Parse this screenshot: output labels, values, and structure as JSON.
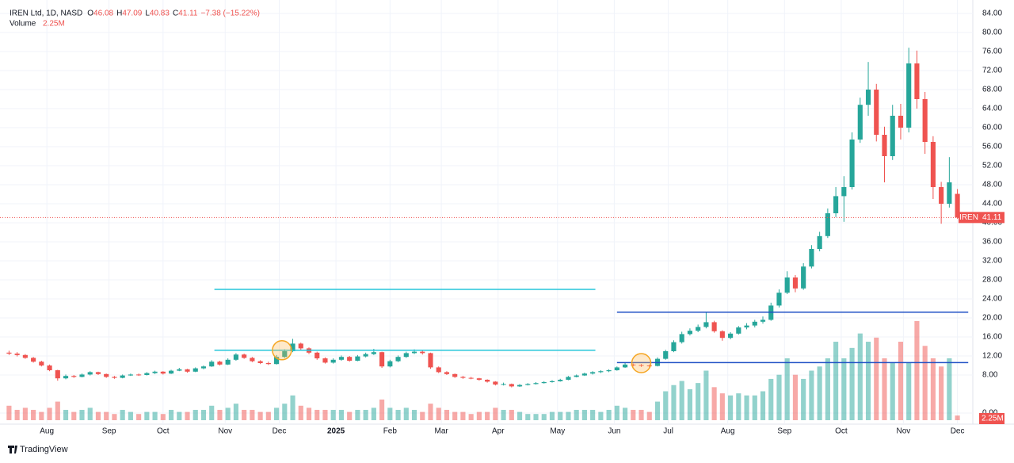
{
  "header": {
    "symbol": "IREN Ltd, 1D, NASD",
    "ohlc": [
      {
        "label": "O",
        "value": "46.08"
      },
      {
        "label": "H",
        "value": "47.09"
      },
      {
        "label": "L",
        "value": "40.83"
      },
      {
        "label": "C",
        "value": "41.11"
      }
    ],
    "change": "−7.38 (−15.22%)",
    "volume_title": "Volume",
    "volume_label": "2.25M"
  },
  "chart_data": {
    "type": "candlestick",
    "ticker": "IREN",
    "up_color": "#26a69a",
    "down_color": "#ef5350",
    "x": [
      0,
      3,
      6,
      9,
      12,
      15,
      18,
      21,
      24,
      27,
      30,
      33,
      36,
      39,
      42,
      45,
      48,
      51,
      54,
      57,
      60,
      63,
      66,
      69,
      72,
      75,
      78,
      81,
      84,
      87,
      90,
      93,
      96,
      99,
      102,
      105,
      108,
      111,
      114,
      117,
      120,
      123,
      126,
      129,
      132,
      135,
      138,
      141,
      144,
      147,
      150,
      153,
      156,
      159,
      162,
      165,
      168,
      171,
      174,
      177,
      180,
      183,
      186,
      189,
      192,
      195,
      198,
      201,
      204,
      207,
      210,
      213,
      216,
      219,
      222,
      225,
      228,
      231,
      234,
      237,
      240,
      243,
      246,
      249,
      252,
      255,
      258,
      261,
      264,
      267,
      270,
      273,
      276,
      279,
      282,
      285,
      288,
      291,
      294,
      297,
      300,
      303,
      306,
      309,
      312,
      315,
      318,
      321,
      324,
      327,
      330,
      333,
      336,
      339,
      342,
      345,
      348,
      351
    ],
    "ohlc": [
      [
        12.7,
        13.1,
        12.2,
        12.5
      ],
      [
        12.5,
        12.8,
        11.9,
        12.2
      ],
      [
        12.2,
        12.4,
        11.4,
        11.6
      ],
      [
        11.6,
        11.8,
        10.6,
        10.8
      ],
      [
        10.8,
        11.0,
        9.8,
        10.0
      ],
      [
        10.0,
        10.2,
        8.8,
        9.0
      ],
      [
        9.0,
        9.1,
        6.8,
        7.3
      ],
      [
        7.3,
        8.1,
        7.1,
        7.8
      ],
      [
        7.8,
        8.0,
        7.4,
        7.6
      ],
      [
        7.6,
        8.3,
        7.5,
        8.1
      ],
      [
        8.1,
        8.8,
        7.9,
        8.6
      ],
      [
        8.6,
        8.7,
        8.0,
        8.2
      ],
      [
        8.2,
        8.3,
        7.4,
        7.6
      ],
      [
        7.6,
        7.8,
        7.2,
        7.4
      ],
      [
        7.4,
        8.1,
        7.3,
        7.9
      ],
      [
        7.9,
        8.3,
        7.8,
        8.1
      ],
      [
        8.1,
        8.3,
        7.8,
        8.0
      ],
      [
        8.0,
        8.6,
        7.9,
        8.4
      ],
      [
        8.4,
        8.9,
        8.2,
        8.7
      ],
      [
        8.7,
        8.8,
        8.1,
        8.3
      ],
      [
        8.3,
        9.1,
        8.2,
        8.9
      ],
      [
        8.9,
        9.5,
        8.8,
        9.2
      ],
      [
        9.2,
        9.3,
        8.5,
        8.7
      ],
      [
        8.7,
        9.6,
        8.6,
        9.4
      ],
      [
        9.4,
        10.0,
        9.2,
        9.8
      ],
      [
        9.8,
        11.1,
        9.7,
        10.8
      ],
      [
        10.8,
        11.0,
        10.0,
        10.2
      ],
      [
        10.2,
        11.5,
        10.1,
        11.2
      ],
      [
        11.2,
        12.6,
        11.0,
        12.3
      ],
      [
        12.3,
        12.5,
        11.4,
        11.6
      ],
      [
        11.6,
        11.8,
        10.7,
        10.9
      ],
      [
        10.9,
        11.1,
        10.3,
        10.5
      ],
      [
        10.5,
        10.8,
        10.1,
        10.3
      ],
      [
        10.3,
        12.2,
        10.2,
        11.8
      ],
      [
        11.8,
        13.4,
        11.6,
        13.0
      ],
      [
        13.0,
        15.6,
        12.8,
        14.6
      ],
      [
        14.6,
        14.8,
        13.3,
        13.6
      ],
      [
        13.6,
        13.8,
        12.4,
        12.7
      ],
      [
        12.7,
        12.9,
        11.2,
        11.5
      ],
      [
        11.5,
        11.7,
        10.4,
        10.6
      ],
      [
        10.6,
        11.5,
        10.4,
        11.2
      ],
      [
        11.2,
        12.1,
        11.0,
        11.8
      ],
      [
        11.8,
        12.0,
        10.8,
        11.0
      ],
      [
        11.0,
        12.2,
        10.9,
        11.9
      ],
      [
        11.9,
        12.7,
        11.7,
        12.4
      ],
      [
        12.4,
        13.5,
        12.2,
        12.8
      ],
      [
        12.8,
        12.9,
        9.5,
        9.8
      ],
      [
        9.8,
        11.2,
        9.6,
        10.9
      ],
      [
        10.9,
        12.1,
        10.7,
        11.8
      ],
      [
        11.8,
        12.9,
        11.6,
        12.6
      ],
      [
        12.6,
        13.4,
        12.4,
        12.9
      ],
      [
        12.9,
        13.2,
        12.3,
        12.6
      ],
      [
        12.6,
        12.7,
        9.3,
        9.6
      ],
      [
        9.6,
        9.8,
        8.4,
        8.6
      ],
      [
        8.6,
        8.8,
        8.0,
        8.2
      ],
      [
        8.2,
        8.3,
        7.4,
        7.6
      ],
      [
        7.6,
        7.8,
        7.2,
        7.4
      ],
      [
        7.4,
        7.6,
        7.1,
        7.3
      ],
      [
        7.3,
        7.4,
        6.8,
        7.0
      ],
      [
        7.0,
        7.1,
        6.4,
        6.6
      ],
      [
        6.6,
        6.7,
        5.8,
        6.0
      ],
      [
        6.0,
        6.4,
        5.8,
        6.1
      ],
      [
        6.1,
        6.2,
        5.4,
        5.6
      ],
      [
        5.6,
        6.1,
        5.5,
        5.9
      ],
      [
        5.9,
        6.3,
        5.8,
        6.1
      ],
      [
        6.1,
        6.5,
        6.0,
        6.3
      ],
      [
        6.3,
        6.7,
        6.2,
        6.5
      ],
      [
        6.5,
        6.9,
        6.4,
        6.7
      ],
      [
        6.7,
        7.2,
        6.6,
        7.0
      ],
      [
        7.0,
        7.8,
        6.9,
        7.6
      ],
      [
        7.6,
        8.1,
        7.5,
        7.9
      ],
      [
        7.9,
        8.5,
        7.8,
        8.3
      ],
      [
        8.3,
        8.8,
        8.1,
        8.6
      ],
      [
        8.6,
        9.0,
        8.4,
        8.8
      ],
      [
        8.8,
        9.2,
        8.6,
        9.0
      ],
      [
        9.0,
        9.8,
        8.9,
        9.6
      ],
      [
        9.6,
        10.5,
        9.5,
        10.2
      ],
      [
        10.2,
        10.4,
        9.8,
        10.1
      ],
      [
        10.1,
        10.3,
        9.7,
        10.0
      ],
      [
        10.0,
        10.2,
        9.6,
        9.9
      ],
      [
        9.9,
        11.7,
        9.8,
        11.4
      ],
      [
        11.4,
        13.3,
        11.2,
        13.0
      ],
      [
        13.0,
        15.3,
        12.8,
        14.9
      ],
      [
        14.9,
        17.1,
        14.6,
        16.6
      ],
      [
        16.6,
        17.8,
        16.3,
        17.3
      ],
      [
        17.3,
        18.6,
        17.0,
        18.1
      ],
      [
        18.1,
        21.3,
        17.8,
        19.1
      ],
      [
        19.1,
        19.4,
        16.9,
        17.2
      ],
      [
        17.2,
        17.4,
        15.2,
        15.8
      ],
      [
        15.8,
        17.0,
        15.5,
        16.7
      ],
      [
        16.7,
        18.3,
        16.5,
        18.0
      ],
      [
        18.0,
        18.9,
        17.6,
        18.4
      ],
      [
        18.4,
        19.6,
        18.0,
        19.2
      ],
      [
        19.2,
        20.3,
        18.8,
        19.6
      ],
      [
        19.6,
        23.2,
        19.4,
        22.6
      ],
      [
        22.6,
        26.0,
        22.2,
        25.3
      ],
      [
        25.3,
        29.8,
        25.0,
        28.5
      ],
      [
        28.5,
        29.0,
        25.4,
        26.2
      ],
      [
        26.2,
        31.5,
        25.9,
        30.8
      ],
      [
        30.8,
        35.3,
        30.4,
        34.5
      ],
      [
        34.5,
        38.1,
        34.0,
        37.2
      ],
      [
        37.2,
        43.0,
        36.8,
        42.0
      ],
      [
        42.0,
        47.5,
        41.2,
        45.6
      ],
      [
        45.6,
        49.8,
        40.2,
        47.5
      ],
      [
        47.5,
        59.0,
        47.0,
        57.5
      ],
      [
        57.5,
        66.3,
        56.8,
        64.8
      ],
      [
        64.8,
        73.8,
        62.5,
        68.0
      ],
      [
        68.0,
        69.2,
        57.1,
        58.5
      ],
      [
        58.5,
        60.2,
        48.5,
        54.0
      ],
      [
        54.0,
        64.8,
        53.2,
        62.5
      ],
      [
        62.5,
        65.0,
        57.5,
        60.0
      ],
      [
        60.0,
        76.8,
        59.0,
        73.5
      ],
      [
        73.5,
        76.2,
        64.0,
        66.0
      ],
      [
        66.0,
        67.5,
        54.5,
        57.0
      ],
      [
        57.0,
        58.2,
        45.0,
        47.5
      ],
      [
        47.5,
        48.6,
        39.8,
        44.0
      ],
      [
        44.0,
        53.8,
        43.2,
        48.5
      ],
      [
        46.08,
        47.09,
        40.83,
        41.11
      ]
    ],
    "volume": [
      7,
      5,
      6,
      5,
      4,
      6,
      9,
      5,
      4,
      5,
      6,
      4,
      4,
      3,
      5,
      4,
      3,
      4,
      4,
      3,
      5,
      4,
      4,
      5,
      5,
      7,
      5,
      6,
      8,
      5,
      5,
      4,
      4,
      6,
      8,
      12,
      7,
      6,
      5,
      5,
      5,
      5,
      4,
      5,
      5,
      6,
      10,
      6,
      5,
      6,
      5,
      4,
      8,
      6,
      5,
      4,
      4,
      3,
      4,
      4,
      6,
      5,
      5,
      4,
      3,
      3,
      3,
      4,
      4,
      4,
      5,
      5,
      5,
      4,
      5,
      7,
      6,
      5,
      5,
      4,
      9,
      14,
      17,
      19,
      15,
      18,
      24,
      16,
      13,
      12,
      13,
      12,
      12,
      14,
      20,
      22,
      30,
      22,
      20,
      24,
      26,
      30,
      38,
      30,
      35,
      42,
      38,
      40,
      30,
      28,
      38,
      28,
      48,
      36,
      30,
      26,
      30,
      2.25
    ],
    "xlim": [
      -1,
      352
    ],
    "ylim": [
      0,
      84
    ],
    "xticks": [
      {
        "value": 14,
        "label": "Aug"
      },
      {
        "value": 37,
        "label": "Sep"
      },
      {
        "value": 57,
        "label": "Oct"
      },
      {
        "value": 80,
        "label": "Nov"
      },
      {
        "value": 100,
        "label": "Dec"
      },
      {
        "value": 121,
        "label": "2025"
      },
      {
        "value": 141,
        "label": "Feb"
      },
      {
        "value": 160,
        "label": "Mar"
      },
      {
        "value": 181,
        "label": "Apr"
      },
      {
        "value": 203,
        "label": "May"
      },
      {
        "value": 224,
        "label": "Jun"
      },
      {
        "value": 244,
        "label": "Jul"
      },
      {
        "value": 266,
        "label": "Aug"
      },
      {
        "value": 287,
        "label": "Sep"
      },
      {
        "value": 308,
        "label": "Oct"
      },
      {
        "value": 331,
        "label": "Nov"
      },
      {
        "value": 351,
        "label": "Dec"
      }
    ],
    "yticks": [
      {
        "value": 84,
        "label": "84.00"
      },
      {
        "value": 80,
        "label": "80.00"
      },
      {
        "value": 76,
        "label": "76.00"
      },
      {
        "value": 72,
        "label": "72.00"
      },
      {
        "value": 68,
        "label": "68.00"
      },
      {
        "value": 64,
        "label": "64.00"
      },
      {
        "value": 60,
        "label": "60.00"
      },
      {
        "value": 56,
        "label": "56.00"
      },
      {
        "value": 52,
        "label": "52.00"
      },
      {
        "value": 48,
        "label": "48.00"
      },
      {
        "value": 44,
        "label": "44.00"
      },
      {
        "value": 40,
        "label": "40.00"
      },
      {
        "value": 36,
        "label": "36.00"
      },
      {
        "value": 32,
        "label": "32.00"
      },
      {
        "value": 28,
        "label": "28.00"
      },
      {
        "value": 24,
        "label": "24.00"
      },
      {
        "value": 20,
        "label": "20.00"
      },
      {
        "value": 16,
        "label": "16.00"
      },
      {
        "value": 12,
        "label": "12.00"
      },
      {
        "value": 8,
        "label": "8.00"
      },
      {
        "value": 0,
        "label": "0.00"
      }
    ],
    "grid": true,
    "levels": [
      {
        "value": 26,
        "start": 76,
        "end": 217,
        "color": "#26c6da"
      },
      {
        "value": 13.2,
        "start": 76,
        "end": 217,
        "color": "#26c6da"
      },
      {
        "value": 21.2,
        "start": 225,
        "end": 355,
        "color": "#1e4fc4"
      },
      {
        "value": 10.6,
        "start": 225,
        "end": 355,
        "color": "#1e4fc4"
      }
    ],
    "circles": [
      {
        "x": 101,
        "y": 13.2
      },
      {
        "x": 234,
        "y": 10.5
      }
    ]
  },
  "footer": {
    "brand": "TradingView"
  }
}
